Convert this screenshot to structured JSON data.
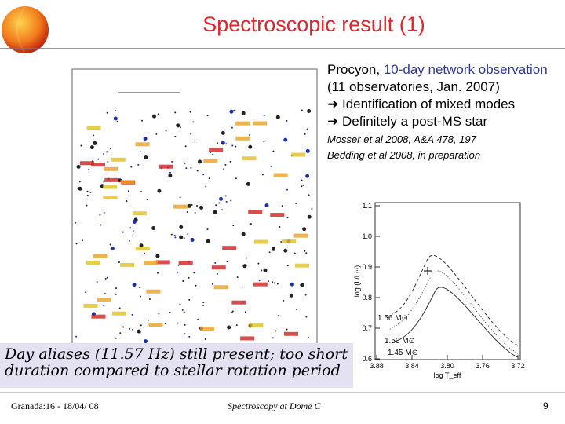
{
  "header": {
    "title": "Spectroscopic result (1)"
  },
  "info": {
    "lines": [
      {
        "plain": "Procyon, ",
        "highlight": "10-day network observation"
      },
      {
        "plain": "(11 observatories, Jan. 2007)"
      },
      {
        "plain": "Identification of mixed modes"
      },
      {
        "plain": "Definitely a post-MS star"
      }
    ],
    "references": [
      "Mosser et al 2008, A&A 478, 197",
      "Bedding et al 2008, in preparation"
    ]
  },
  "hr_diagram": {
    "ylabel": "log (L/L⊙)",
    "xlabel": "log T_eff",
    "yticks": [
      "1.1",
      "1.0",
      "0.9",
      "0.8",
      "0.7",
      "0.6"
    ],
    "xticks": [
      "3.88",
      "3.84",
      "3.80",
      "3.76",
      "3.72"
    ],
    "tracks": [
      "1.56 M⊙",
      "1.50 M⊙",
      "1.45 M⊙"
    ]
  },
  "caption": "Day aliases (11.57 Hz) still present; too short duration compared to stellar rotation period",
  "footer": {
    "left": "Granada:16 - 18/04/ 08",
    "center": "Spectroscopy at Dome C",
    "page": "9"
  }
}
